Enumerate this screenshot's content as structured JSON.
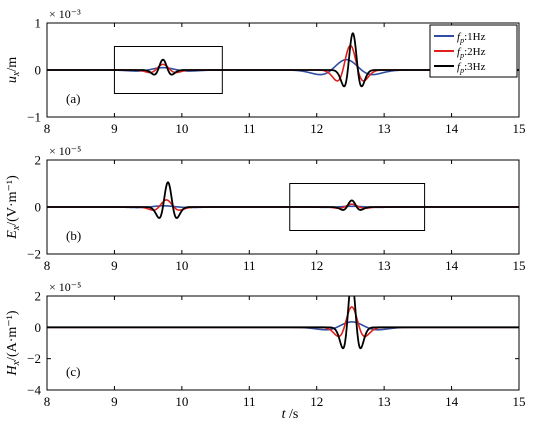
{
  "colors": {
    "axis": "#000000",
    "series_1": "#2f4fa0",
    "series_2": "#e0201c",
    "series_3": "#000000"
  },
  "chart_data": {
    "type": "line",
    "xlabel": "t /s",
    "legend": {
      "placement": "top-right",
      "entries": [
        "f_p:1Hz",
        "f_p:2Hz",
        "f_p:3Hz"
      ]
    },
    "panels": [
      {
        "id": "a",
        "label": "(a)",
        "ylabel": "u_x/m",
        "exponent": "× 10⁻³",
        "xlim": [
          8,
          15
        ],
        "ylim": [
          -1,
          1
        ],
        "xticks": [
          "8",
          "9",
          "10",
          "11",
          "12",
          "13",
          "14",
          "15"
        ],
        "yticks": [
          "-1",
          "0",
          "1"
        ],
        "highlight_box": {
          "t": [
            9.0,
            10.6
          ],
          "y": [
            -0.5,
            0.5
          ]
        },
        "events": [
          {
            "t0": 9.72,
            "dt": 0.0,
            "amps": [
              0.05,
              0.12,
              0.22
            ]
          },
          {
            "t0": 12.5,
            "dt": 0.12,
            "amps": [
              0.22,
              0.52,
              0.78
            ]
          }
        ]
      },
      {
        "id": "b",
        "label": "(b)",
        "ylabel": "E_x/(V·m⁻¹)",
        "exponent": "× 10⁻⁵",
        "xlim": [
          8,
          15
        ],
        "ylim": [
          -2,
          2
        ],
        "xticks": [
          "8",
          "9",
          "10",
          "11",
          "12",
          "13",
          "14",
          "15"
        ],
        "yticks": [
          "-2",
          "0",
          "2"
        ],
        "highlight_box": {
          "t": [
            11.6,
            13.6
          ],
          "y": [
            -1,
            1
          ]
        },
        "events": [
          {
            "t0": 9.77,
            "dt": 0.08,
            "amps": [
              0.05,
              0.3,
              1.05
            ]
          },
          {
            "t0": 12.52,
            "dt": 0.0,
            "amps": [
              0.03,
              0.12,
              0.28
            ]
          }
        ]
      },
      {
        "id": "c",
        "label": "(c)",
        "ylabel": "H_x/(A·m⁻¹)",
        "exponent": "× 10⁻⁵",
        "xlim": [
          8,
          15
        ],
        "ylim": [
          -4,
          2
        ],
        "xticks": [
          "8",
          "9",
          "10",
          "11",
          "12",
          "13",
          "14",
          "15"
        ],
        "yticks": [
          "-4",
          "-2",
          "0",
          "2"
        ],
        "highlight_box": null,
        "events": [
          {
            "t0": 12.52,
            "dt": 0.0,
            "amps": [
              0.35,
              1.3,
              3.0
            ]
          }
        ]
      }
    ]
  }
}
